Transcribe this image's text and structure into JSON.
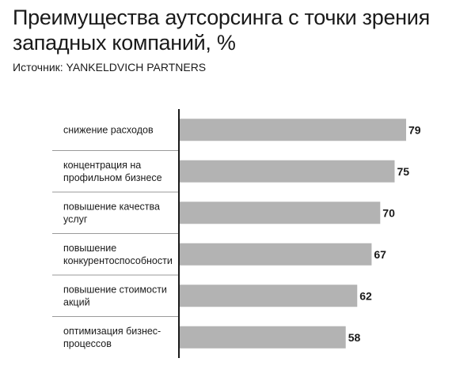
{
  "header": {
    "title": "Преимущества аутсорсинга с точки зрения западных компаний, %",
    "source": "Источник: YANKELDVICH PARTNERS"
  },
  "colors": {
    "bar": "#b3b3b3",
    "axis": "#1a1a1a",
    "divider": "#9a9a9a"
  },
  "chart_data": {
    "type": "bar",
    "orientation": "horizontal",
    "title": "Преимущества аутсорсинга с точки зрения западных компаний, %",
    "xlabel": "",
    "ylabel": "",
    "xlim": [
      0,
      79
    ],
    "grid": false,
    "legend": "none",
    "categories": [
      [
        "снижение расходов"
      ],
      [
        "концентрация на",
        "профильном бизнесе"
      ],
      [
        "повышение качества",
        "услуг"
      ],
      [
        "повышение",
        "конкурентоспособности"
      ],
      [
        "повышение стоимости",
        "акций"
      ],
      [
        "оптимизация бизнес-",
        "процессов"
      ]
    ],
    "values": [
      79,
      75,
      70,
      67,
      62,
      58
    ]
  }
}
